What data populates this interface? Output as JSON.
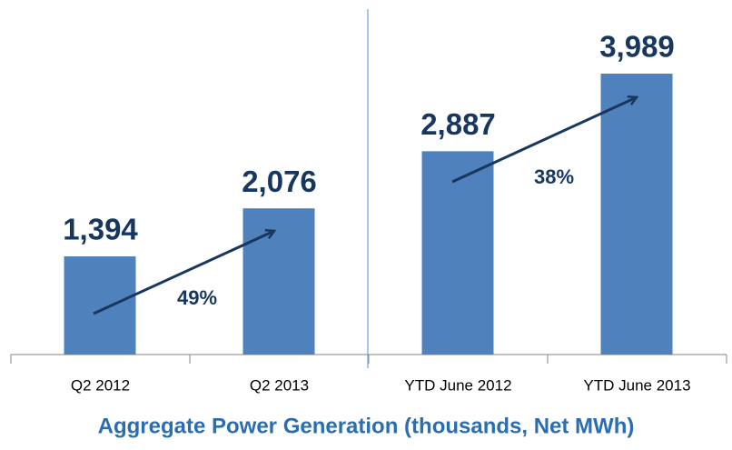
{
  "chart_data": {
    "type": "bar",
    "title": "Aggregate Power Generation (thousands, Net MWh)",
    "categories": [
      "Q2 2012",
      "Q2 2013",
      "YTD June 2012",
      "YTD June 2013"
    ],
    "values": [
      1394,
      2076,
      2887,
      3989
    ],
    "value_labels": [
      "1,394",
      "2,076",
      "2,887",
      "3,989"
    ],
    "color": "#4f81bd",
    "annotations": [
      "49%",
      "38%"
    ]
  }
}
